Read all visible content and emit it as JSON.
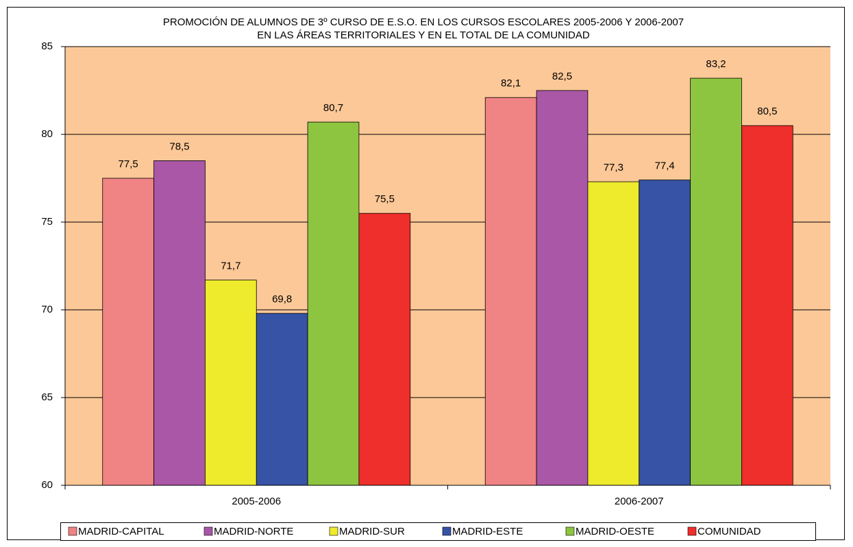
{
  "chart_data": {
    "type": "bar",
    "title": [
      "PROMOCIÓN DE ALUMNOS DE 3º CURSO DE  E.S.O. EN LOS CURSOS ESCOLARES  2005-2006 Y 2006-2007",
      "EN LAS ÁREAS TERRITORIALES  Y EN EL TOTAL DE LA COMUNIDAD"
    ],
    "categories": [
      "2005-2006",
      "2006-2007"
    ],
    "series": [
      {
        "name": "MADRID-CAPITAL",
        "color": "#f08383",
        "values": [
          77.5,
          82.1
        ],
        "value_labels": [
          "77,5",
          "82,1"
        ]
      },
      {
        "name": "MADRID-NORTE",
        "color": "#a957a6",
        "values": [
          78.5,
          82.5
        ],
        "value_labels": [
          "78,5",
          "82,5"
        ]
      },
      {
        "name": "MADRID-SUR",
        "color": "#eeea2c",
        "values": [
          71.7,
          77.3
        ],
        "value_labels": [
          "71,7",
          "77,3"
        ]
      },
      {
        "name": "MADRID-ESTE",
        "color": "#3653a5",
        "values": [
          69.8,
          77.4
        ],
        "value_labels": [
          "69,8",
          "77,4"
        ]
      },
      {
        "name": "MADRID-OESTE",
        "color": "#8dc540",
        "values": [
          80.7,
          83.2
        ],
        "value_labels": [
          "80,7",
          "83,2"
        ]
      },
      {
        "name": "COMUNIDAD",
        "color": "#ee2f2b",
        "values": [
          75.5,
          80.5
        ],
        "value_labels": [
          "75,5",
          "80,5"
        ]
      }
    ],
    "ylim": [
      60,
      85
    ],
    "yticks": [
      60,
      65,
      70,
      75,
      80,
      85
    ],
    "grid": true,
    "legend": "bottom"
  }
}
